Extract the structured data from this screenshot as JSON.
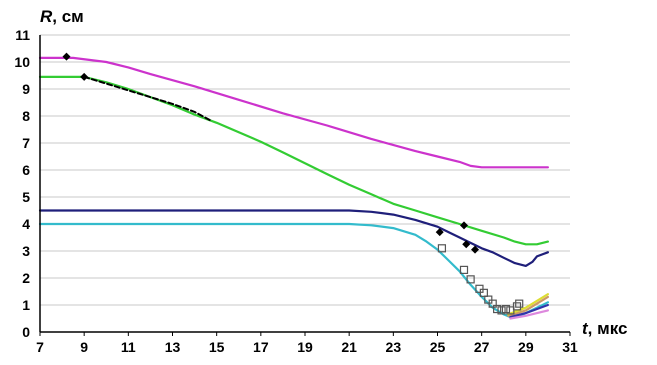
{
  "chart_data": {
    "type": "line",
    "title": "",
    "xlabel_symbol": "t",
    "xlabel_unit": ", мкс",
    "ylabel_symbol": "R",
    "ylabel_unit": ", см",
    "xlim": [
      7,
      31
    ],
    "ylim": [
      0,
      11
    ],
    "x_ticks": [
      "7",
      "9",
      "11",
      "13",
      "15",
      "17",
      "19",
      "21",
      "23",
      "25",
      "27",
      "29",
      "31"
    ],
    "y_ticks": [
      "0",
      "1",
      "2",
      "3",
      "4",
      "5",
      "6",
      "7",
      "8",
      "9",
      "10",
      "11"
    ],
    "grid": "horizontal",
    "legend": "none",
    "series": [
      {
        "color": "#cc33cc",
        "style": "solid",
        "points": [
          [
            7.0,
            10.15
          ],
          [
            8.5,
            10.15
          ],
          [
            10.0,
            10.0
          ],
          [
            11.0,
            9.8
          ],
          [
            12.0,
            9.55
          ],
          [
            14.0,
            9.1
          ],
          [
            16.0,
            8.6
          ],
          [
            18.0,
            8.1
          ],
          [
            20.0,
            7.65
          ],
          [
            22.0,
            7.15
          ],
          [
            24.0,
            6.7
          ],
          [
            25.0,
            6.5
          ],
          [
            26.0,
            6.3
          ],
          [
            26.5,
            6.15
          ],
          [
            27.0,
            6.1
          ],
          [
            28.0,
            6.1
          ],
          [
            30.0,
            6.1
          ]
        ]
      },
      {
        "color": "#33cc33",
        "style": "solid",
        "points": [
          [
            7.0,
            9.45
          ],
          [
            9.0,
            9.45
          ],
          [
            10.0,
            9.25
          ],
          [
            11.0,
            9.0
          ],
          [
            12.0,
            8.7
          ],
          [
            13.0,
            8.4
          ],
          [
            14.0,
            8.05
          ],
          [
            15.0,
            7.75
          ],
          [
            16.0,
            7.4
          ],
          [
            17.0,
            7.05
          ],
          [
            18.0,
            6.65
          ],
          [
            19.0,
            6.25
          ],
          [
            20.0,
            5.85
          ],
          [
            21.0,
            5.45
          ],
          [
            22.0,
            5.1
          ],
          [
            23.0,
            4.75
          ],
          [
            24.0,
            4.5
          ],
          [
            25.0,
            4.25
          ],
          [
            26.0,
            4.0
          ],
          [
            27.0,
            3.75
          ],
          [
            28.0,
            3.5
          ],
          [
            28.5,
            3.35
          ],
          [
            29.0,
            3.25
          ],
          [
            29.5,
            3.25
          ],
          [
            30.0,
            3.35
          ]
        ]
      },
      {
        "color": "#1f1f7a",
        "style": "solid",
        "points": [
          [
            7.0,
            4.5
          ],
          [
            21.0,
            4.5
          ],
          [
            22.0,
            4.45
          ],
          [
            23.0,
            4.35
          ],
          [
            24.0,
            4.15
          ],
          [
            25.0,
            3.9
          ],
          [
            25.5,
            3.7
          ],
          [
            26.0,
            3.5
          ],
          [
            26.5,
            3.3
          ],
          [
            27.0,
            3.1
          ],
          [
            27.5,
            2.95
          ],
          [
            28.0,
            2.75
          ],
          [
            28.5,
            2.55
          ],
          [
            29.0,
            2.45
          ],
          [
            29.3,
            2.6
          ],
          [
            29.5,
            2.8
          ],
          [
            30.0,
            2.95
          ]
        ]
      },
      {
        "color": "#33bbcc",
        "style": "solid",
        "points": [
          [
            7.0,
            4.0
          ],
          [
            21.0,
            4.0
          ],
          [
            22.0,
            3.95
          ],
          [
            23.0,
            3.85
          ],
          [
            24.0,
            3.6
          ],
          [
            24.5,
            3.35
          ],
          [
            25.0,
            3.05
          ],
          [
            25.5,
            2.65
          ],
          [
            26.0,
            2.25
          ],
          [
            26.5,
            1.75
          ],
          [
            27.0,
            1.3
          ],
          [
            27.5,
            0.9
          ],
          [
            28.0,
            0.65
          ],
          [
            28.3,
            0.55
          ],
          [
            28.6,
            0.55
          ],
          [
            29.0,
            0.7
          ],
          [
            29.5,
            0.9
          ],
          [
            30.0,
            1.1
          ]
        ]
      },
      {
        "color": "#cc9966",
        "style": "solid",
        "points": [
          [
            28.2,
            0.6
          ],
          [
            29.0,
            0.8
          ],
          [
            30.0,
            1.3
          ]
        ]
      },
      {
        "color": "#dddd33",
        "style": "solid",
        "points": [
          [
            28.2,
            0.65
          ],
          [
            29.0,
            0.9
          ],
          [
            30.0,
            1.4
          ]
        ]
      },
      {
        "color": "#3333aa",
        "style": "solid",
        "points": [
          [
            28.3,
            0.55
          ],
          [
            29.0,
            0.7
          ],
          [
            30.0,
            1.0
          ]
        ]
      },
      {
        "color": "#dd88dd",
        "style": "solid",
        "points": [
          [
            28.3,
            0.5
          ],
          [
            29.0,
            0.6
          ],
          [
            30.0,
            0.8
          ]
        ]
      },
      {
        "color": "#000000",
        "style": "dashed",
        "points": [
          [
            9.0,
            9.45
          ],
          [
            10.0,
            9.2
          ],
          [
            11.0,
            8.95
          ],
          [
            12.0,
            8.7
          ],
          [
            13.0,
            8.45
          ],
          [
            14.0,
            8.15
          ],
          [
            14.7,
            7.85
          ]
        ]
      }
    ],
    "markers_diamond": [
      [
        8.2,
        10.2
      ],
      [
        9.0,
        9.45
      ],
      [
        25.1,
        3.7
      ],
      [
        26.2,
        3.95
      ],
      [
        26.3,
        3.25
      ],
      [
        26.7,
        3.05
      ]
    ],
    "markers_square": [
      [
        25.2,
        3.1
      ],
      [
        26.2,
        2.3
      ],
      [
        26.5,
        1.95
      ],
      [
        26.9,
        1.6
      ],
      [
        27.1,
        1.45
      ],
      [
        27.3,
        1.2
      ],
      [
        27.5,
        1.05
      ],
      [
        27.7,
        0.85
      ],
      [
        27.9,
        0.8
      ],
      [
        28.1,
        0.85
      ],
      [
        28.3,
        0.8
      ],
      [
        28.6,
        0.95
      ],
      [
        28.7,
        1.05
      ]
    ]
  }
}
